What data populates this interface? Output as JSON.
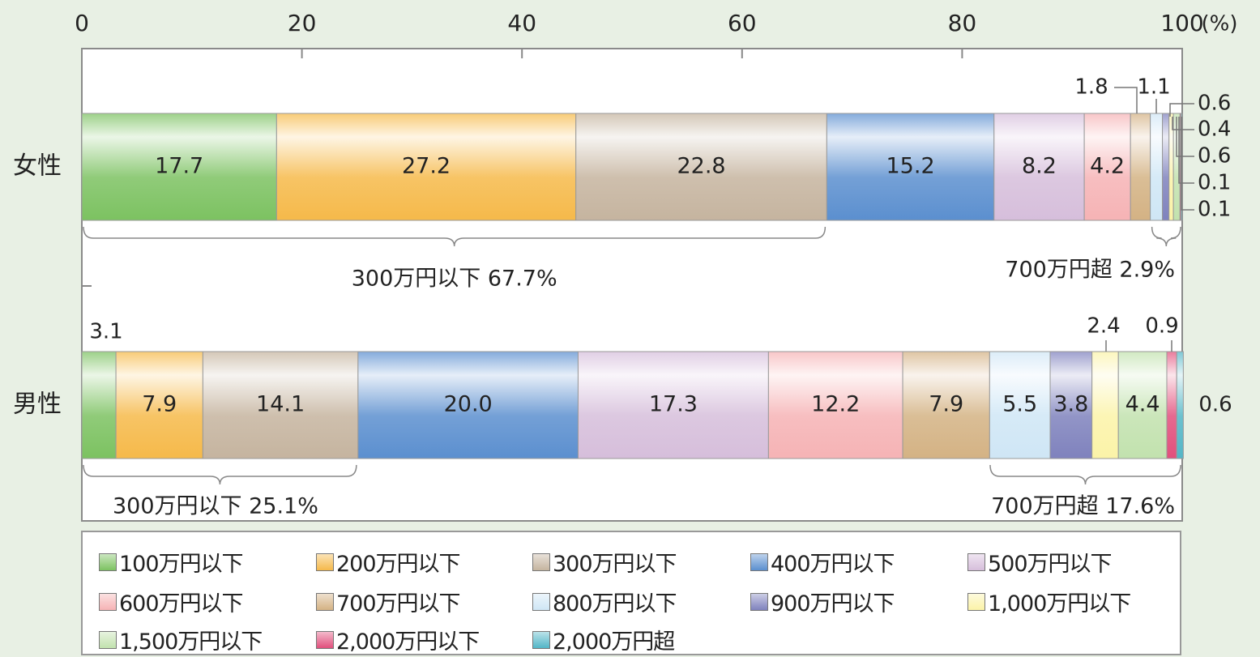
{
  "chart_data": {
    "type": "bar",
    "orientation": "horizontal",
    "stacked": true,
    "x_axis": {
      "ticks": [
        "0",
        "20",
        "40",
        "60",
        "80",
        "100"
      ],
      "unit": "(%)",
      "range": [
        0,
        100
      ]
    },
    "categories": [
      {
        "label": "女性",
        "values": [
          17.7,
          27.2,
          22.8,
          15.2,
          8.2,
          4.2,
          1.8,
          1.1,
          0.6,
          0.4,
          0.6,
          0.1,
          0.1
        ]
      },
      {
        "label": "男性",
        "values": [
          3.1,
          7.9,
          14.1,
          20.0,
          17.3,
          12.2,
          7.9,
          5.5,
          3.8,
          2.4,
          4.4,
          0.9,
          0.6
        ]
      }
    ],
    "series": [
      {
        "name": "100万円以下",
        "color": "#7cc261"
      },
      {
        "name": "200万円以下",
        "color": "#f5b94a"
      },
      {
        "name": "300万円以下",
        "color": "#c5b49f"
      },
      {
        "name": "400万円以下",
        "color": "#5b8fcf"
      },
      {
        "name": "500万円以下",
        "color": "#d6bedb"
      },
      {
        "name": "600万円以下",
        "color": "#f6b3b5"
      },
      {
        "name": "700万円以下",
        "color": "#d4b284"
      },
      {
        "name": "800万円以下",
        "color": "#cfe6f5"
      },
      {
        "name": "900万円以下",
        "color": "#7f82bd"
      },
      {
        "name": "1,000万円以下",
        "color": "#fbf3a8"
      },
      {
        "name": "1,500万円以下",
        "color": "#c2e2ae"
      },
      {
        "name": "2,000万円以下",
        "color": "#e1507c"
      },
      {
        "name": "2,000万円超",
        "color": "#53b6c7"
      }
    ],
    "bar_labels": {
      "女性": [
        "17.7",
        "27.2",
        "22.8",
        "15.2",
        "8.2",
        "4.2",
        "1.8",
        "1.1",
        "0.6",
        "0.4",
        "0.6",
        "0.1",
        "0.1"
      ],
      "男性": [
        "3.1",
        "7.9",
        "14.1",
        "20.0",
        "17.3",
        "12.2",
        "7.9",
        "5.5",
        "3.8",
        "2.4",
        "4.4",
        "0.9",
        "0.6"
      ]
    },
    "annotations": [
      {
        "bar": "女性",
        "range": [
          0,
          67.7
        ],
        "text": "300万円以下 67.7%"
      },
      {
        "bar": "女性",
        "range": [
          97.1,
          100
        ],
        "text": "700万円超 2.9%"
      },
      {
        "bar": "男性",
        "range": [
          0,
          25.1
        ],
        "text": "300万円以下 25.1%"
      },
      {
        "bar": "男性",
        "range": [
          82.4,
          100
        ],
        "text": "700万円超 17.6%"
      }
    ],
    "legend_placement": "bottom"
  }
}
